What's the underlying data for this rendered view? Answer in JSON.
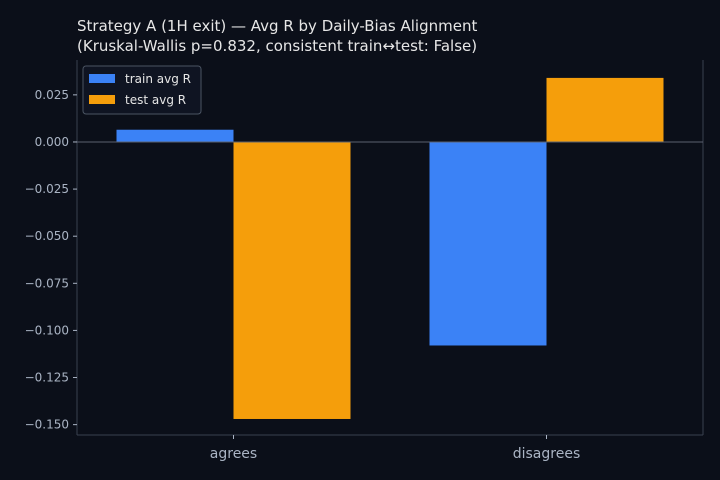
{
  "chart_data": {
    "type": "bar",
    "title": "Strategy A (1H exit) — Avg R by Daily-Bias Alignment",
    "subtitle": "(Kruskal-Wallis p=0.832, consistent train↔test: False)",
    "xlabel": "",
    "ylabel": "",
    "categories": [
      "agrees",
      "disagrees"
    ],
    "series": [
      {
        "name": "train avg R",
        "values": [
          0.0065,
          -0.108
        ],
        "color": "#3b82f6"
      },
      {
        "name": "test avg R",
        "values": [
          -0.147,
          0.034
        ],
        "color": "#f59e0b"
      }
    ],
    "ylim": [
      -0.1555,
      0.0435
    ],
    "yticks": [
      0.025,
      0.0,
      -0.025,
      -0.05,
      -0.075,
      -0.1,
      -0.125,
      -0.15
    ],
    "ytick_labels": [
      "0.025",
      "0.000",
      "−0.025",
      "−0.050",
      "−0.075",
      "−0.100",
      "−0.125",
      "−0.150"
    ],
    "zero_line": true,
    "grid": false,
    "legend": "top-left"
  },
  "colors": {
    "background": "#0b0f19",
    "axis": "#3a4150",
    "text": "#e6e6e6",
    "tick_text": "#aab4c4",
    "legend_frame": "#4b5563",
    "legend_bg": "#0f1422"
  }
}
